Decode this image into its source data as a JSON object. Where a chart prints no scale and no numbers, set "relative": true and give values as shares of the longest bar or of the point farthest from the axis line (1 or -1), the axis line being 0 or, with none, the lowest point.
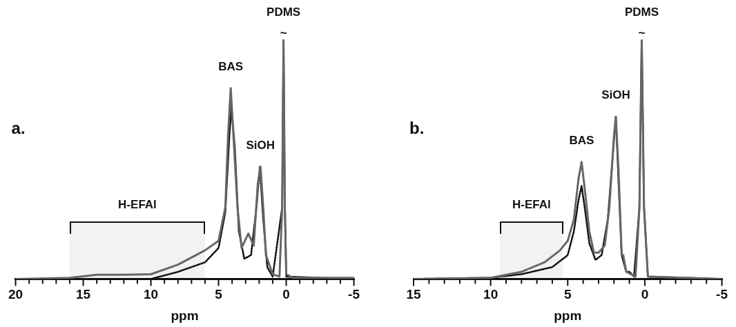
{
  "chart_data": [
    {
      "type": "line",
      "relative": true,
      "xlabel": "ppm",
      "xlim": [
        20,
        -5
      ],
      "xticks": [
        20,
        {
          "value": 19,
          "label": null
        },
        {
          "value": 18,
          "label": null
        },
        {
          "value": 17,
          "label": null
        },
        {
          "value": 16,
          "label": null
        },
        15,
        {
          "value": 14,
          "label": null
        },
        {
          "value": 13,
          "label": null
        },
        {
          "value": 12,
          "label": null
        },
        {
          "value": 11,
          "label": null
        },
        10,
        {
          "value": 9,
          "label": null
        },
        {
          "value": 8,
          "label": null
        },
        {
          "value": 7,
          "label": null
        },
        {
          "value": 6,
          "label": null
        },
        5,
        {
          "value": 4,
          "label": null
        },
        {
          "value": 3,
          "label": null
        },
        {
          "value": 2,
          "label": null
        },
        {
          "value": 1,
          "label": null
        },
        0,
        {
          "value": -1,
          "label": null
        },
        {
          "value": -2,
          "label": null
        },
        {
          "value": -3,
          "label": null
        },
        {
          "value": -4,
          "label": null
        },
        -5
      ],
      "series": [
        {
          "color": "#666666",
          "line_style": "solid",
          "x": [
            20,
            16,
            14,
            12,
            10,
            8,
            6,
            5,
            4.5,
            4.3,
            4.1,
            3.9,
            3.6,
            3.3,
            2.8,
            2.4,
            2.1,
            1.9,
            1.7,
            1.5,
            1,
            0.5,
            0.3,
            0.2,
            0.1,
            0,
            -0.5,
            -5
          ],
          "values": [
            0,
            0.005,
            0.018,
            0.018,
            0.02,
            0.06,
            0.12,
            0.16,
            0.3,
            0.6,
            0.8,
            0.6,
            0.3,
            0.13,
            0.19,
            0.14,
            0.4,
            0.47,
            0.3,
            0.1,
            0.02,
            0.01,
            0.3,
            1,
            0.3,
            0.02,
            0.005,
            0.005
          ]
        },
        {
          "color": "#111111",
          "line_style": "dotted",
          "x": [
            20,
            10,
            8,
            6,
            5,
            4.5,
            4.2,
            4.05,
            3.8,
            3.5,
            3.1,
            2.6,
            2.2,
            1.95,
            1.7,
            1.4,
            1,
            0.3,
            0.2,
            0.1,
            0,
            -5
          ],
          "values": [
            0,
            0,
            0.03,
            0.07,
            0.13,
            0.28,
            0.6,
            0.72,
            0.55,
            0.2,
            0.085,
            0.1,
            0.3,
            0.47,
            0.25,
            0.05,
            0.01,
            0.3,
            1,
            0.3,
            0.01,
            0
          ]
        }
      ],
      "bands": [
        {
          "axis": "x",
          "from": 16,
          "to": 6,
          "label": "H-EFAl"
        }
      ],
      "annotations": [
        "a.",
        {
          "text": "BAS",
          "x": 4.1,
          "y": 0.8
        },
        {
          "text": "SiOH",
          "x": 1.9,
          "y": 0.47
        },
        {
          "text": "PDMS",
          "x": 0.2,
          "y": 1
        },
        {
          "text": "~",
          "x": 0.2,
          "y": 1
        }
      ]
    },
    {
      "type": "line",
      "relative": true,
      "xlabel": "ppm",
      "xlim": [
        15,
        -5
      ],
      "xticks": [
        15,
        {
          "value": 14,
          "label": null
        },
        {
          "value": 13,
          "label": null
        },
        {
          "value": 12,
          "label": null
        },
        {
          "value": 11,
          "label": null
        },
        10,
        {
          "value": 9,
          "label": null
        },
        {
          "value": 8,
          "label": null
        },
        {
          "value": 7,
          "label": null
        },
        {
          "value": 6,
          "label": null
        },
        5,
        {
          "value": 4,
          "label": null
        },
        {
          "value": 3,
          "label": null
        },
        {
          "value": 2,
          "label": null
        },
        {
          "value": 1,
          "label": null
        },
        0,
        {
          "value": -1,
          "label": null
        },
        {
          "value": -2,
          "label": null
        },
        {
          "value": -3,
          "label": null
        },
        {
          "value": -4,
          "label": null
        },
        -5
      ],
      "series": [
        {
          "color": "#666666",
          "line_style": "solid",
          "x": [
            15,
            10,
            8,
            6.5,
            5.5,
            5,
            4.6,
            4.3,
            4.1,
            3.9,
            3.6,
            3.3,
            3,
            2.6,
            2.3,
            2,
            1.88,
            1.7,
            1.5,
            1.4,
            1.2,
            0.9,
            0.6,
            0.35,
            0.2,
            0.05,
            -0.2,
            -5
          ],
          "values": [
            0,
            0.005,
            0.03,
            0.07,
            0.12,
            0.16,
            0.25,
            0.42,
            0.49,
            0.38,
            0.2,
            0.11,
            0.11,
            0.14,
            0.3,
            0.6,
            0.68,
            0.45,
            0.1,
            0.1,
            0.03,
            0.02,
            0.01,
            0.3,
            1,
            0.3,
            0.01,
            0
          ]
        },
        {
          "color": "#111111",
          "line_style": "dotted",
          "x": [
            15,
            10,
            8,
            6,
            5,
            4.6,
            4.3,
            4.1,
            3.9,
            3.6,
            3.2,
            2.8,
            2.4,
            2.1,
            1.88,
            1.7,
            1.5,
            1.2,
            1,
            0.7,
            0.35,
            0.2,
            0.05,
            -0.2,
            -5
          ],
          "values": [
            0,
            0.005,
            0.02,
            0.05,
            0.1,
            0.2,
            0.33,
            0.39,
            0.3,
            0.15,
            0.08,
            0.1,
            0.25,
            0.5,
            0.68,
            0.4,
            0.1,
            0.03,
            0.03,
            0.01,
            0.3,
            1,
            0.3,
            0.01,
            0
          ]
        }
      ],
      "bands": [
        {
          "axis": "x",
          "from": 9.4,
          "to": 5.3,
          "label": "H-EFAl"
        }
      ],
      "annotations": [
        "b.",
        {
          "text": "BAS",
          "x": 4.1,
          "y": 0.49
        },
        {
          "text": "SiOH",
          "x": 1.88,
          "y": 0.68
        },
        {
          "text": "PDMS",
          "x": 0.2,
          "y": 1
        },
        {
          "text": "~",
          "x": 0.2,
          "y": 1
        }
      ]
    }
  ]
}
